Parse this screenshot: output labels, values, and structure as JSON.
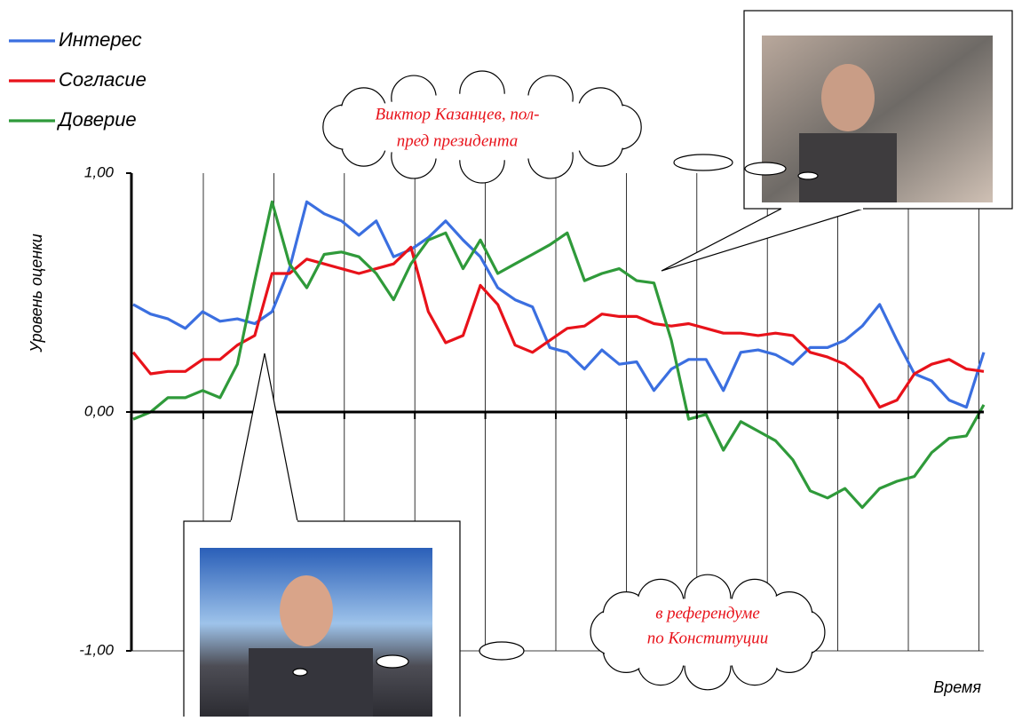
{
  "chart_data": {
    "type": "line",
    "y_label": "Уровень оценки",
    "x_label": "Время",
    "categories": [
      null,
      null,
      null,
      null,
      null,
      null,
      null,
      null,
      null,
      null,
      null,
      null,
      null,
      null,
      null,
      null,
      null,
      null,
      null,
      null,
      null,
      null,
      null,
      null,
      null,
      null,
      null,
      null,
      null,
      null,
      null,
      null,
      null,
      null,
      null,
      null,
      null,
      null,
      null,
      null,
      null,
      null,
      null,
      null,
      null,
      null,
      null,
      null,
      null,
      null
    ],
    "series": [
      {
        "name": "Интерес",
        "color": "#3b6fe0",
        "values": [
          0.45,
          0.41,
          0.39,
          0.35,
          0.42,
          0.38,
          0.39,
          0.37,
          0.42,
          0.6,
          0.88,
          0.83,
          0.8,
          0.74,
          0.8,
          0.65,
          0.68,
          0.73,
          0.8,
          0.72,
          0.65,
          0.52,
          0.47,
          0.44,
          0.27,
          0.25,
          0.18,
          0.26,
          0.2,
          0.21,
          0.09,
          0.18,
          0.22,
          0.22,
          0.09,
          0.25,
          0.26,
          0.24,
          0.2,
          0.27,
          0.27,
          0.3,
          0.36,
          0.45,
          0.3,
          0.16,
          0.13,
          0.05,
          0.02,
          0.25
        ]
      },
      {
        "name": "Согласие",
        "color": "#e8121a",
        "values": [
          0.25,
          0.16,
          0.17,
          0.17,
          0.22,
          0.22,
          0.28,
          0.32,
          0.58,
          0.58,
          0.64,
          0.62,
          0.6,
          0.58,
          0.6,
          0.62,
          0.69,
          0.42,
          0.29,
          0.32,
          0.53,
          0.45,
          0.28,
          0.25,
          0.3,
          0.35,
          0.36,
          0.41,
          0.4,
          0.4,
          0.37,
          0.36,
          0.37,
          0.35,
          0.33,
          0.33,
          0.32,
          0.33,
          0.32,
          0.25,
          0.23,
          0.2,
          0.14,
          0.02,
          0.05,
          0.16,
          0.2,
          0.22,
          0.18,
          0.17
        ]
      },
      {
        "name": "Доверие",
        "color": "#2f9a3a",
        "values": [
          -0.03,
          0.0,
          0.06,
          0.06,
          0.09,
          0.06,
          0.2,
          0.55,
          0.88,
          0.62,
          0.52,
          0.66,
          0.67,
          0.65,
          0.58,
          0.47,
          0.62,
          0.72,
          0.75,
          0.6,
          0.72,
          0.58,
          0.62,
          0.66,
          0.7,
          0.75,
          0.55,
          0.58,
          0.6,
          0.55,
          0.54,
          0.3,
          -0.03,
          -0.01,
          -0.16,
          -0.04,
          -0.08,
          -0.12,
          -0.2,
          -0.33,
          -0.36,
          -0.32,
          -0.4,
          -0.32,
          -0.29,
          -0.27,
          -0.17,
          -0.11,
          -0.1,
          0.03
        ]
      }
    ],
    "ylim": [
      -1,
      1
    ],
    "yticks": [
      {
        "value": 1,
        "label": "1,00"
      },
      {
        "value": 0,
        "label": "0,00"
      },
      {
        "value": -1,
        "label": "-1,00"
      }
    ],
    "annotations": [
      {
        "lines": [
          "Виктор Казанцев, пол-",
          "пред президента"
        ]
      },
      {
        "lines": [
          "в референдуме",
          "по Конституции"
        ]
      }
    ]
  }
}
